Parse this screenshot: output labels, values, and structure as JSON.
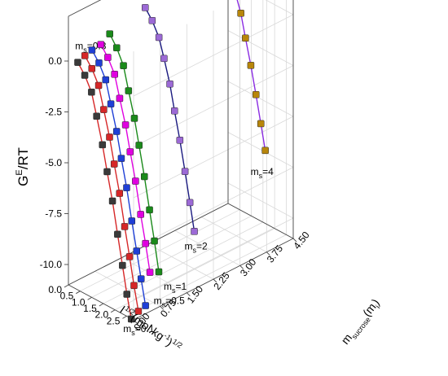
{
  "chart_data": {
    "type": "line",
    "title": "",
    "zlabel_main": "G",
    "zlabel_sup": "E",
    "zlabel_rest": "/RT",
    "xlabel": {
      "pre": "I",
      "sup1": "1/2",
      "mid": "(mol.kg",
      "sup2": "-1",
      "post": ")",
      "sup3": "1/2"
    },
    "ylabel": {
      "pre": "m",
      "sub1": "sucrose",
      "mid": "(m",
      "sub2": "i",
      "post": ")"
    },
    "xlim": [
      0,
      2.8
    ],
    "ylim": [
      0,
      4.5
    ],
    "zlim": [
      -11,
      2.2
    ],
    "z_ticks": [
      "0.0",
      "-2.5",
      "-5.0",
      "-7.5",
      "-10.0"
    ],
    "z_tick_values": [
      0,
      -2.5,
      -5,
      -7.5,
      -10
    ],
    "x_ticks": [
      "0.0",
      "0.5",
      "1.0",
      "1.5",
      "2.0",
      "2.5"
    ],
    "x_tick_values": [
      0,
      0.5,
      1,
      1.5,
      2,
      2.5
    ],
    "y_ticks": [
      "0.00",
      "0.75",
      "1.50",
      "2.25",
      "3.00",
      "3.75",
      "4.50"
    ],
    "y_tick_values": [
      0,
      0.75,
      1.5,
      2.25,
      3,
      3.75,
      4.5
    ],
    "grid": true,
    "series": [
      {
        "label_base": "m",
        "label_sub": "s",
        "label_value": "=0.1",
        "color": "#d62728",
        "marker_color": "#3a3a3a",
        "ms": 0.1,
        "x": [
          0.25,
          0.55,
          0.84,
          1.06,
          1.31,
          1.51,
          1.74,
          1.96,
          2.17,
          2.36,
          2.55
        ],
        "z": [
          0.0,
          -0.45,
          -1.1,
          -2.15,
          -3.4,
          -4.6,
          -5.9,
          -7.4,
          -8.8,
          -10.1,
          -11.2
        ]
      },
      {
        "label_base": "m",
        "label_sub": "s",
        "label_value": "=0.3",
        "color": "#d62728",
        "marker_color": "#d62728",
        "ms": 0.3,
        "x": [
          0.25,
          0.55,
          0.84,
          1.06,
          1.31,
          1.51,
          1.74,
          1.96,
          2.17,
          2.36,
          2.55
        ],
        "z": [
          0.15,
          -0.3,
          -0.95,
          -2.0,
          -3.2,
          -4.4,
          -5.7,
          -7.2,
          -8.55,
          -9.85,
          -11.0
        ]
      },
      {
        "label_base": "m",
        "label_sub": "s",
        "label_value": "=0.5",
        "color": "#1f3fd6",
        "marker_color": "#1f3fd6",
        "ms": 0.5,
        "x": [
          0.25,
          0.55,
          0.84,
          1.06,
          1.31,
          1.51,
          1.74,
          1.96,
          2.17,
          2.36,
          2.55
        ],
        "z": [
          0.25,
          -0.2,
          -0.85,
          -1.9,
          -3.1,
          -4.3,
          -5.6,
          -7.1,
          -8.45,
          -9.7,
          -10.9
        ]
      },
      {
        "label_base": "",
        "label_sub": "",
        "label_value": "",
        "color": "#e000e0",
        "marker_color": "#e000e0",
        "ms": 0.75,
        "x": [
          0.25,
          0.55,
          0.84,
          1.06,
          1.31,
          1.51,
          1.74,
          1.96,
          2.17,
          2.36
        ],
        "z": [
          0.3,
          -0.15,
          -0.8,
          -1.85,
          -3.0,
          -4.2,
          -5.5,
          -7.0,
          -8.3,
          -9.6
        ]
      },
      {
        "label_base": "m",
        "label_sub": "s",
        "label_value": "=1",
        "color": "#1a8a1a",
        "marker_color": "#1a8a1a",
        "ms": 1.0,
        "x": [
          0.25,
          0.55,
          0.84,
          1.06,
          1.31,
          1.51,
          1.74,
          1.96,
          2.17,
          2.36
        ],
        "z": [
          0.6,
          0.1,
          -0.6,
          -1.7,
          -2.9,
          -4.1,
          -5.5,
          -7.0,
          -8.4,
          -9.8
        ]
      },
      {
        "label_base": "m",
        "label_sub": "s",
        "label_value": "=2",
        "color": "#1a1a80",
        "marker_color": "#9c6ad6",
        "ms": 2.0,
        "x": [
          0.25,
          0.55,
          0.84,
          1.06,
          1.31,
          1.51,
          1.74,
          1.96,
          2.17,
          2.36
        ],
        "z": [
          1.0,
          0.55,
          -0.1,
          -1.0,
          -2.1,
          -3.3,
          -4.6,
          -6.0,
          -7.4,
          -8.7
        ]
      },
      {
        "label_base": "m",
        "label_sub": "s",
        "label_value": "=4",
        "color": "#8a2be2",
        "marker_color": "#b8860b",
        "ms": 4.0,
        "x": [
          0.25,
          0.55,
          0.84,
          1.06,
          1.31,
          1.51,
          1.74,
          1.96,
          2.17,
          2.36
        ],
        "z": [
          2.0,
          1.7,
          1.2,
          0.5,
          -0.4,
          -1.5,
          -2.7,
          -4.0,
          -5.3,
          -6.5
        ]
      }
    ]
  }
}
